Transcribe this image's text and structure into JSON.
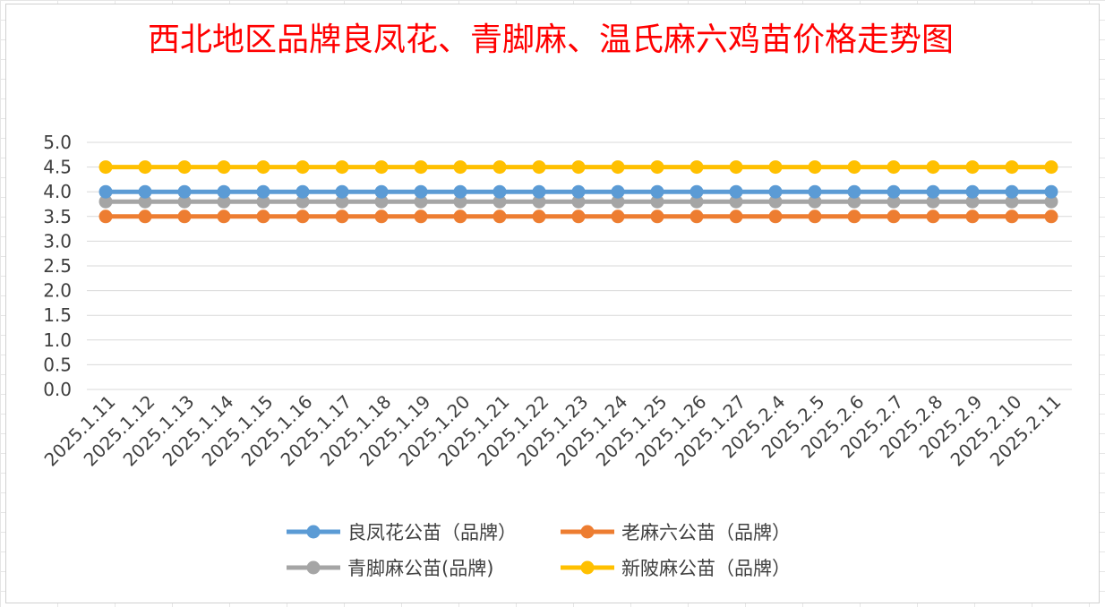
{
  "chart_data": {
    "type": "line",
    "title": "西北地区品牌良凤花、青脚麻、温氏麻六鸡苗价格走势图",
    "title_color": "#ff0000",
    "xlabel": "",
    "ylabel": "",
    "ylim": [
      0,
      5
    ],
    "ytick_labels": [
      "0.0",
      "0.5",
      "1.0",
      "1.5",
      "2.0",
      "2.5",
      "3.0",
      "3.5",
      "4.0",
      "4.5",
      "5.0"
    ],
    "grid": true,
    "legend_position": "bottom",
    "categories": [
      "2025.1.11",
      "2025.1.12",
      "2025.1.13",
      "2025.1.14",
      "2025.1.15",
      "2025.1.16",
      "2025.1.17",
      "2025.1.18",
      "2025.1.19",
      "2025.1.20",
      "2025.1.21",
      "2025.1.22",
      "2025.1.23",
      "2025.1.24",
      "2025.1.25",
      "2025.1.26",
      "2025.1.27",
      "2025.2.4",
      "2025.2.5",
      "2025.2.6",
      "2025.2.7",
      "2025.2.8",
      "2025.2.9",
      "2025.2.10",
      "2025.2.11"
    ],
    "series": [
      {
        "name": "良凤花公苗（品牌）",
        "color": "#5b9bd5",
        "values": [
          4.0,
          4.0,
          4.0,
          4.0,
          4.0,
          4.0,
          4.0,
          4.0,
          4.0,
          4.0,
          4.0,
          4.0,
          4.0,
          4.0,
          4.0,
          4.0,
          4.0,
          4.0,
          4.0,
          4.0,
          4.0,
          4.0,
          4.0,
          4.0,
          4.0
        ]
      },
      {
        "name": "老麻六公苗（品牌）",
        "color": "#ed7d31",
        "values": [
          3.5,
          3.5,
          3.5,
          3.5,
          3.5,
          3.5,
          3.5,
          3.5,
          3.5,
          3.5,
          3.5,
          3.5,
          3.5,
          3.5,
          3.5,
          3.5,
          3.5,
          3.5,
          3.5,
          3.5,
          3.5,
          3.5,
          3.5,
          3.5,
          3.5
        ]
      },
      {
        "name": "青脚麻公苗(品牌)",
        "color": "#a5a5a5",
        "values": [
          3.8,
          3.8,
          3.8,
          3.8,
          3.8,
          3.8,
          3.8,
          3.8,
          3.8,
          3.8,
          3.8,
          3.8,
          3.8,
          3.8,
          3.8,
          3.8,
          3.8,
          3.8,
          3.8,
          3.8,
          3.8,
          3.8,
          3.8,
          3.8,
          3.8
        ]
      },
      {
        "name": "新陂麻公苗（品牌）",
        "color": "#ffc000",
        "values": [
          4.5,
          4.5,
          4.5,
          4.5,
          4.5,
          4.5,
          4.5,
          4.5,
          4.5,
          4.5,
          4.5,
          4.5,
          4.5,
          4.5,
          4.5,
          4.5,
          4.5,
          4.5,
          4.5,
          4.5,
          4.5,
          4.5,
          4.5,
          4.5,
          4.5
        ]
      }
    ]
  }
}
